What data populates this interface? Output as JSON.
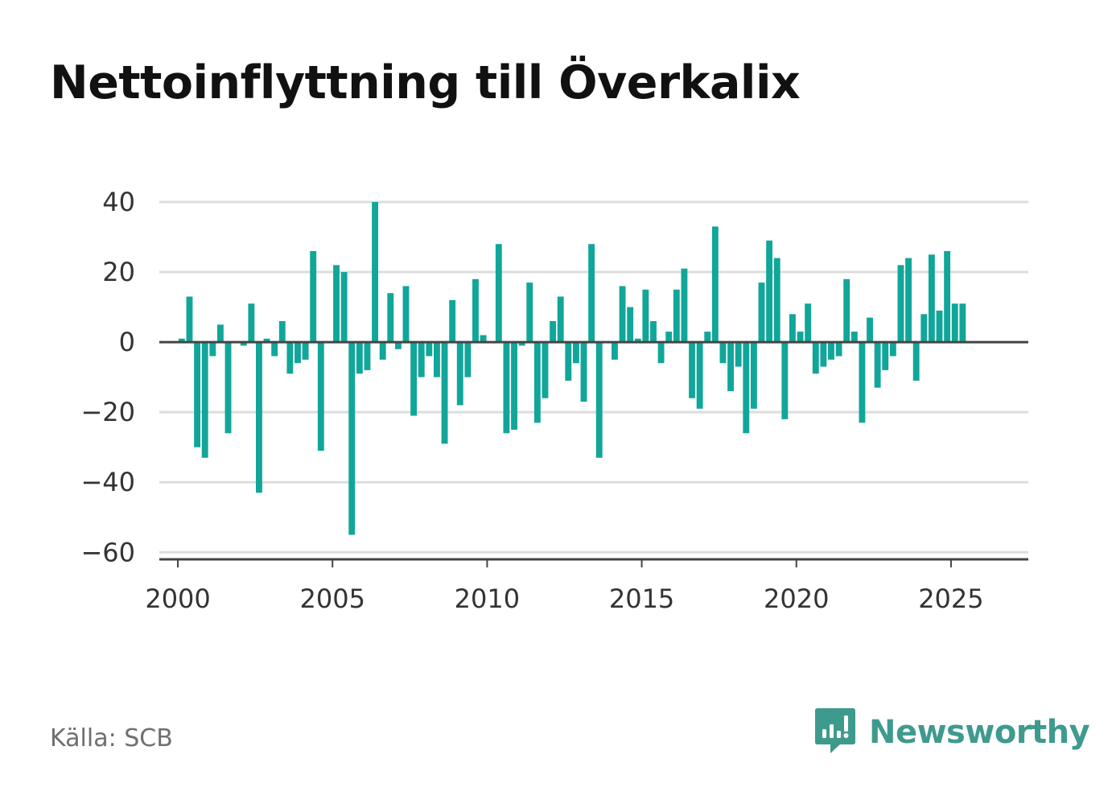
{
  "title": "Nettoinflyttning till Överkalix",
  "source": "Källa: SCB",
  "brand": {
    "name": "Newsworthy",
    "icon": "newsworthy-logo-icon"
  },
  "colors": {
    "bar": "#11a69a",
    "grid": "#dddddd",
    "axis": "#444444",
    "brand": "#3f9a8e"
  },
  "chart_data": {
    "type": "bar",
    "xlabel": "",
    "ylabel": "",
    "ylim": [
      -62,
      40
    ],
    "xlim": [
      1999.4,
      2027.5
    ],
    "y_ticks": [
      40,
      20,
      0,
      -20,
      -40,
      -60
    ],
    "y_tick_labels": [
      "40",
      "20",
      "0",
      "−20",
      "−40",
      "−60"
    ],
    "x_ticks": [
      2000,
      2005,
      2010,
      2015,
      2020,
      2025
    ],
    "x_tick_labels": [
      "2000",
      "2005",
      "2010",
      "2015",
      "2020",
      "2025"
    ],
    "grid": true,
    "legend": "none",
    "series": [
      {
        "x": [
          2000.125,
          2000.375,
          2000.625,
          2000.875,
          2001.125,
          2001.375,
          2001.625,
          2001.875,
          2002.125,
          2002.375,
          2002.625,
          2002.875,
          2003.125,
          2003.375,
          2003.625,
          2003.875,
          2004.125,
          2004.375,
          2004.625,
          2004.875,
          2005.125,
          2005.375,
          2005.625,
          2005.875,
          2006.125,
          2006.375,
          2006.625,
          2006.875,
          2007.125,
          2007.375,
          2007.625,
          2007.875,
          2008.125,
          2008.375,
          2008.625,
          2008.875,
          2009.125,
          2009.375,
          2009.625,
          2009.875,
          2010.125,
          2010.375,
          2010.625,
          2010.875,
          2011.125,
          2011.375,
          2011.625,
          2011.875,
          2012.125,
          2012.375,
          2012.625,
          2012.875,
          2013.125,
          2013.375,
          2013.625,
          2013.875,
          2014.125,
          2014.375,
          2014.625,
          2014.875,
          2015.125,
          2015.375,
          2015.625,
          2015.875,
          2016.125,
          2016.375,
          2016.625,
          2016.875,
          2017.125,
          2017.375,
          2017.625,
          2017.875,
          2018.125,
          2018.375,
          2018.625,
          2018.875,
          2019.125,
          2019.375,
          2019.625,
          2019.875,
          2020.125,
          2020.375,
          2020.625,
          2020.875,
          2021.125,
          2021.375,
          2021.625,
          2021.875,
          2022.125,
          2022.375,
          2022.625,
          2022.875,
          2023.125,
          2023.375,
          2023.625,
          2023.875,
          2024.125,
          2024.375,
          2024.625,
          2024.875,
          2025.125,
          2025.375
        ],
        "values": [
          1,
          13,
          -30,
          -33,
          -4,
          5,
          -26,
          0,
          -1,
          11,
          -43,
          1,
          -4,
          6,
          -9,
          -6,
          -5,
          26,
          -31,
          0,
          22,
          20,
          -55,
          -9,
          -8,
          40,
          -5,
          14,
          -2,
          16,
          -21,
          -10,
          -4,
          -10,
          -29,
          12,
          -18,
          -10,
          18,
          2,
          0,
          28,
          -26,
          -25,
          -1,
          17,
          -23,
          -16,
          6,
          13,
          -11,
          -6,
          -17,
          28,
          -33,
          0,
          -5,
          16,
          10,
          1,
          15,
          6,
          -6,
          3,
          15,
          21,
          -16,
          -19,
          3,
          33,
          -6,
          -14,
          -7,
          -26,
          -19,
          17,
          29,
          24,
          -22,
          8,
          3,
          11,
          -9,
          -7,
          -5,
          -4,
          18,
          3,
          -23,
          7,
          -13,
          -8,
          -4,
          22,
          24,
          -11,
          8,
          25,
          9,
          26,
          11,
          11
        ]
      }
    ]
  }
}
